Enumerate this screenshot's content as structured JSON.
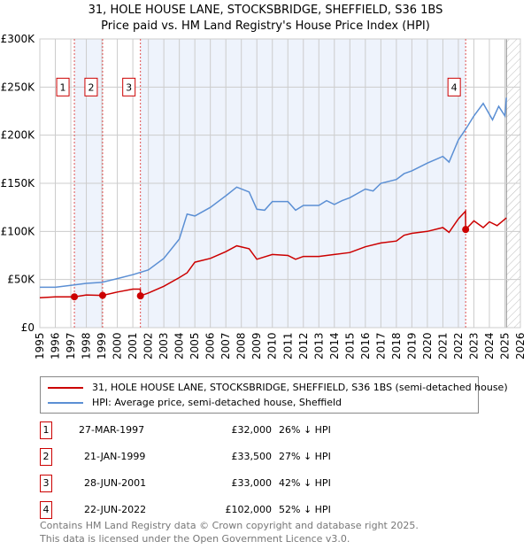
{
  "title": "31, HOLE HOUSE LANE, STOCKSBRIDGE, SHEFFIELD, S36 1BS",
  "subtitle": "Price paid vs. HM Land Registry's House Price Index (HPI)",
  "chart_data": {
    "type": "line",
    "ylim": [
      0,
      300000
    ],
    "xlim": [
      1995,
      2026
    ],
    "yticks": [
      {
        "v": 0,
        "label": "£0"
      },
      {
        "v": 50000,
        "label": "£50K"
      },
      {
        "v": 100000,
        "label": "£100K"
      },
      {
        "v": 150000,
        "label": "£150K"
      },
      {
        "v": 200000,
        "label": "£200K"
      },
      {
        "v": 250000,
        "label": "£250K"
      },
      {
        "v": 300000,
        "label": "£300K"
      }
    ],
    "xticks": [
      "1995",
      "1996",
      "1997",
      "1998",
      "1999",
      "2000",
      "2001",
      "2002",
      "2003",
      "2004",
      "2005",
      "2006",
      "2007",
      "2008",
      "2009",
      "2010",
      "2011",
      "2012",
      "2013",
      "2014",
      "2015",
      "2016",
      "2017",
      "2018",
      "2019",
      "2020",
      "2021",
      "2022",
      "2023",
      "2024",
      "2025",
      "2026"
    ],
    "shaded_ranges": [
      [
        1997.23,
        1999.05
      ],
      [
        2001.49,
        2022.47
      ]
    ],
    "hatched_from": 2025.1,
    "series": [
      {
        "name": "31, HOLE HOUSE LANE, STOCKSBRIDGE, SHEFFIELD, S36 1BS (semi-detached house)",
        "color": "#cc0000",
        "x": [
          1995,
          1996,
          1997.23,
          1998,
          1999.05,
          2000,
          2001,
          2001.48,
          2001.49,
          2002,
          2003,
          2004,
          2004.5,
          2005,
          2006,
          2007,
          2007.7,
          2008.5,
          2009,
          2010,
          2011,
          2011.5,
          2012,
          2013,
          2014,
          2015,
          2016,
          2017,
          2018,
          2018.5,
          2019,
          2020,
          2021,
          2021.4,
          2022,
          2022.46,
          2022.47,
          2023,
          2023.6,
          2024,
          2024.5,
          2025.1
        ],
        "y": [
          31000,
          32000,
          32000,
          34000,
          33500,
          37000,
          40000,
          40000,
          33000,
          36000,
          43000,
          52000,
          57000,
          68000,
          72000,
          79000,
          85000,
          82000,
          71000,
          76000,
          75000,
          71000,
          74000,
          74000,
          76000,
          78000,
          84000,
          88000,
          90000,
          96000,
          98000,
          100000,
          104000,
          99000,
          113000,
          121000,
          102000,
          111000,
          104000,
          110000,
          106000,
          114000
        ]
      },
      {
        "name": "HPI: Average price, semi-detached house, Sheffield",
        "color": "#5b8fd4",
        "x": [
          1995,
          1996,
          1997,
          1998,
          1999,
          2000,
          2001,
          2002,
          2003,
          2004,
          2004.5,
          2005,
          2006,
          2007,
          2007.7,
          2008.5,
          2009,
          2009.5,
          2010,
          2011,
          2011.5,
          2012,
          2013,
          2013.5,
          2014,
          2014.5,
          2015,
          2016,
          2016.5,
          2017,
          2018,
          2018.5,
          2019,
          2020,
          2021,
          2021.4,
          2022,
          2022.5,
          2023,
          2023.6,
          2024.2,
          2024.6,
          2025,
          2025.1
        ],
        "y": [
          42000,
          42000,
          44000,
          46000,
          47000,
          51000,
          55000,
          60000,
          72000,
          92000,
          118000,
          116000,
          125000,
          137000,
          146000,
          141000,
          123000,
          122000,
          131000,
          131000,
          122000,
          127000,
          127000,
          132000,
          128000,
          132000,
          135000,
          144000,
          142000,
          150000,
          154000,
          160000,
          163000,
          171000,
          178000,
          172000,
          195000,
          207000,
          220000,
          233000,
          216000,
          230000,
          220000,
          239000
        ]
      }
    ],
    "sales": [
      {
        "label": "1",
        "x": 1997.23,
        "y": 32000
      },
      {
        "label": "2",
        "x": 1999.05,
        "y": 33500
      },
      {
        "label": "3",
        "x": 2001.49,
        "y": 33000
      },
      {
        "label": "4",
        "x": 2022.47,
        "y": 102000
      }
    ]
  },
  "legend": {
    "property": "31, HOLE HOUSE LANE, STOCKSBRIDGE, SHEFFIELD, S36 1BS (semi-detached house)",
    "hpi": "HPI: Average price, semi-detached house, Sheffield"
  },
  "transactions": [
    {
      "num": "1",
      "date": "27-MAR-1997",
      "price": "£32,000",
      "hpi": "26% ↓ HPI"
    },
    {
      "num": "2",
      "date": "21-JAN-1999",
      "price": "£33,500",
      "hpi": "27% ↓ HPI"
    },
    {
      "num": "3",
      "date": "28-JUN-2001",
      "price": "£33,000",
      "hpi": "42% ↓ HPI"
    },
    {
      "num": "4",
      "date": "22-JUN-2022",
      "price": "£102,000",
      "hpi": "52% ↓ HPI"
    }
  ],
  "footer": {
    "line1": "Contains HM Land Registry data © Crown copyright and database right 2025.",
    "line2": "This data is licensed under the Open Government Licence v3.0."
  }
}
